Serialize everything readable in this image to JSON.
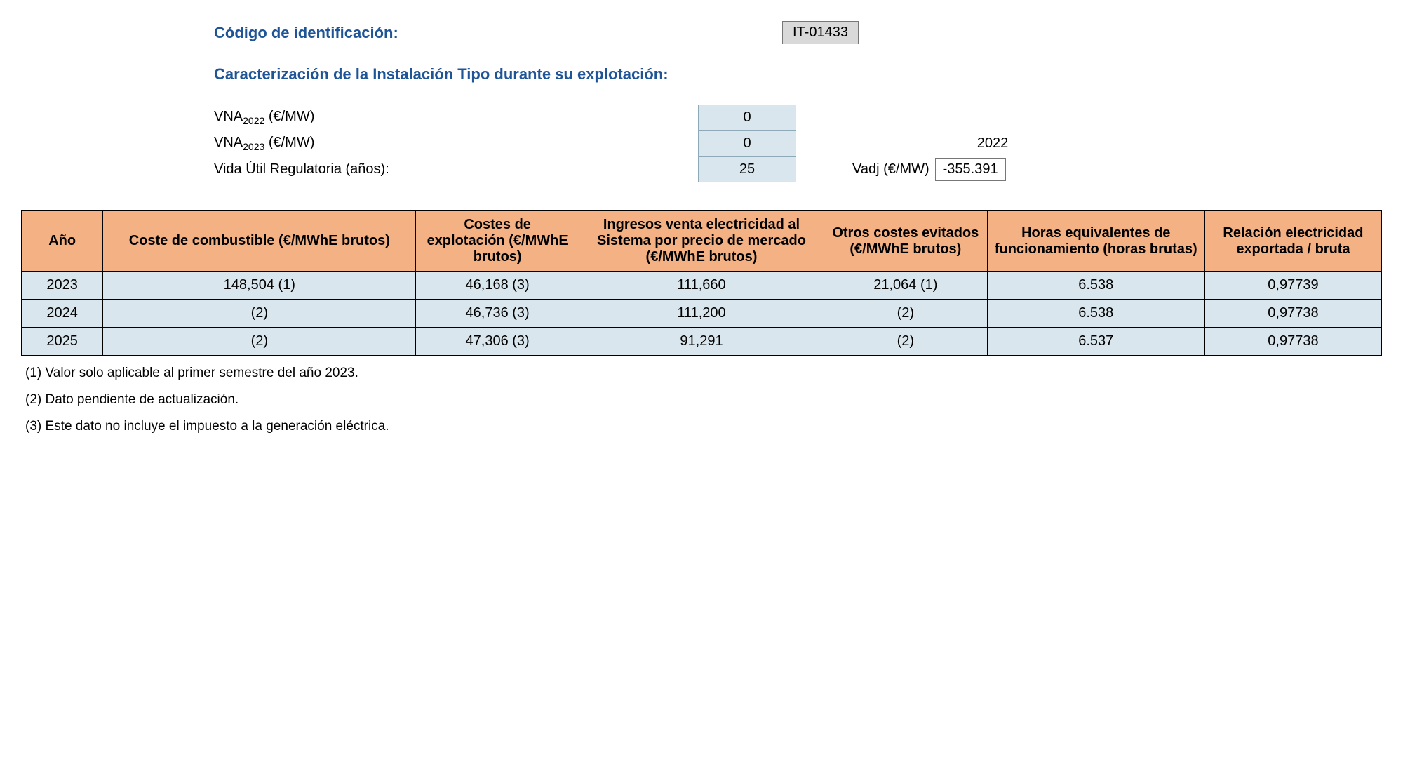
{
  "header": {
    "code_label": "Código de identificación:",
    "code_value": "IT-01433",
    "section_title": "Caracterización de la Instalación Tipo durante su explotación:"
  },
  "params": {
    "vna2022_label_prefix": "VNA",
    "vna2022_label_sub": "2022",
    "vna2022_label_suffix": " (€/MW)",
    "vna2022_value": "0",
    "vna2023_label_prefix": "VNA",
    "vna2023_label_sub": "2023",
    "vna2023_label_suffix": " (€/MW)",
    "vna2023_value": "0",
    "vida_label": "Vida Útil Regulatoria (años):",
    "vida_value": "25",
    "vadj_year": "2022",
    "vadj_label": "Vadj (€/MW)",
    "vadj_value": "-355.391"
  },
  "table": {
    "columns": [
      "Año",
      "Coste de combustible (€/MWhE brutos)",
      "Costes de explotación (€/MWhE brutos)",
      "Ingresos venta electricidad al Sistema por precio de mercado (€/MWhE brutos)",
      "Otros costes evitados (€/MWhE brutos)",
      "Horas equivalentes de funcionamiento (horas brutas)",
      "Relación electricidad exportada / bruta"
    ],
    "col_widths_pct": [
      6,
      23,
      12,
      18,
      12,
      16,
      13
    ],
    "rows": [
      [
        "2023",
        "148,504 (1)",
        "46,168 (3)",
        "111,660",
        "21,064 (1)",
        "6.538",
        "0,97739"
      ],
      [
        "2024",
        "(2)",
        "46,736 (3)",
        "111,200",
        "(2)",
        "6.538",
        "0,97738"
      ],
      [
        "2025",
        "(2)",
        "47,306 (3)",
        "91,291",
        "(2)",
        "6.537",
        "0,97738"
      ]
    ]
  },
  "footnotes": [
    "(1) Valor solo aplicable al primer semestre del año 2023.",
    "(2) Dato pendiente de actualización.",
    "(3) Este dato no incluye el impuesto a la generación eléctrica."
  ],
  "colors": {
    "heading": "#1f5597",
    "th_bg": "#f4b183",
    "td_bg": "#d9e6ed",
    "code_bg": "#d9d9d9"
  }
}
